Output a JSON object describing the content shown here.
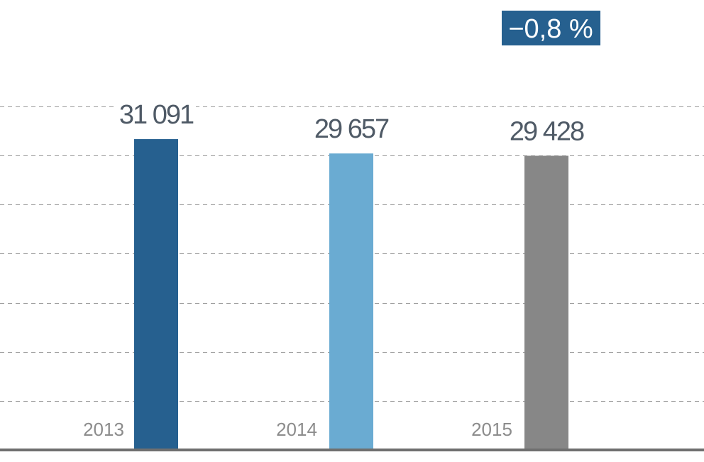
{
  "chart_data": {
    "type": "bar",
    "categories": [
      "2013",
      "2014",
      "2015"
    ],
    "values": [
      31091,
      29657,
      29428
    ],
    "value_labels": [
      "31 091",
      "29 657",
      "29 428"
    ],
    "bar_colors": [
      "#26608f",
      "#6aabd2",
      "#878787"
    ],
    "ylim": [
      0,
      34360
    ],
    "grid": true,
    "grid_step": 4908.6,
    "title": "",
    "xlabel": "",
    "ylabel": "",
    "annotation": {
      "text": "−0,8 %",
      "color": "#26608f"
    }
  }
}
